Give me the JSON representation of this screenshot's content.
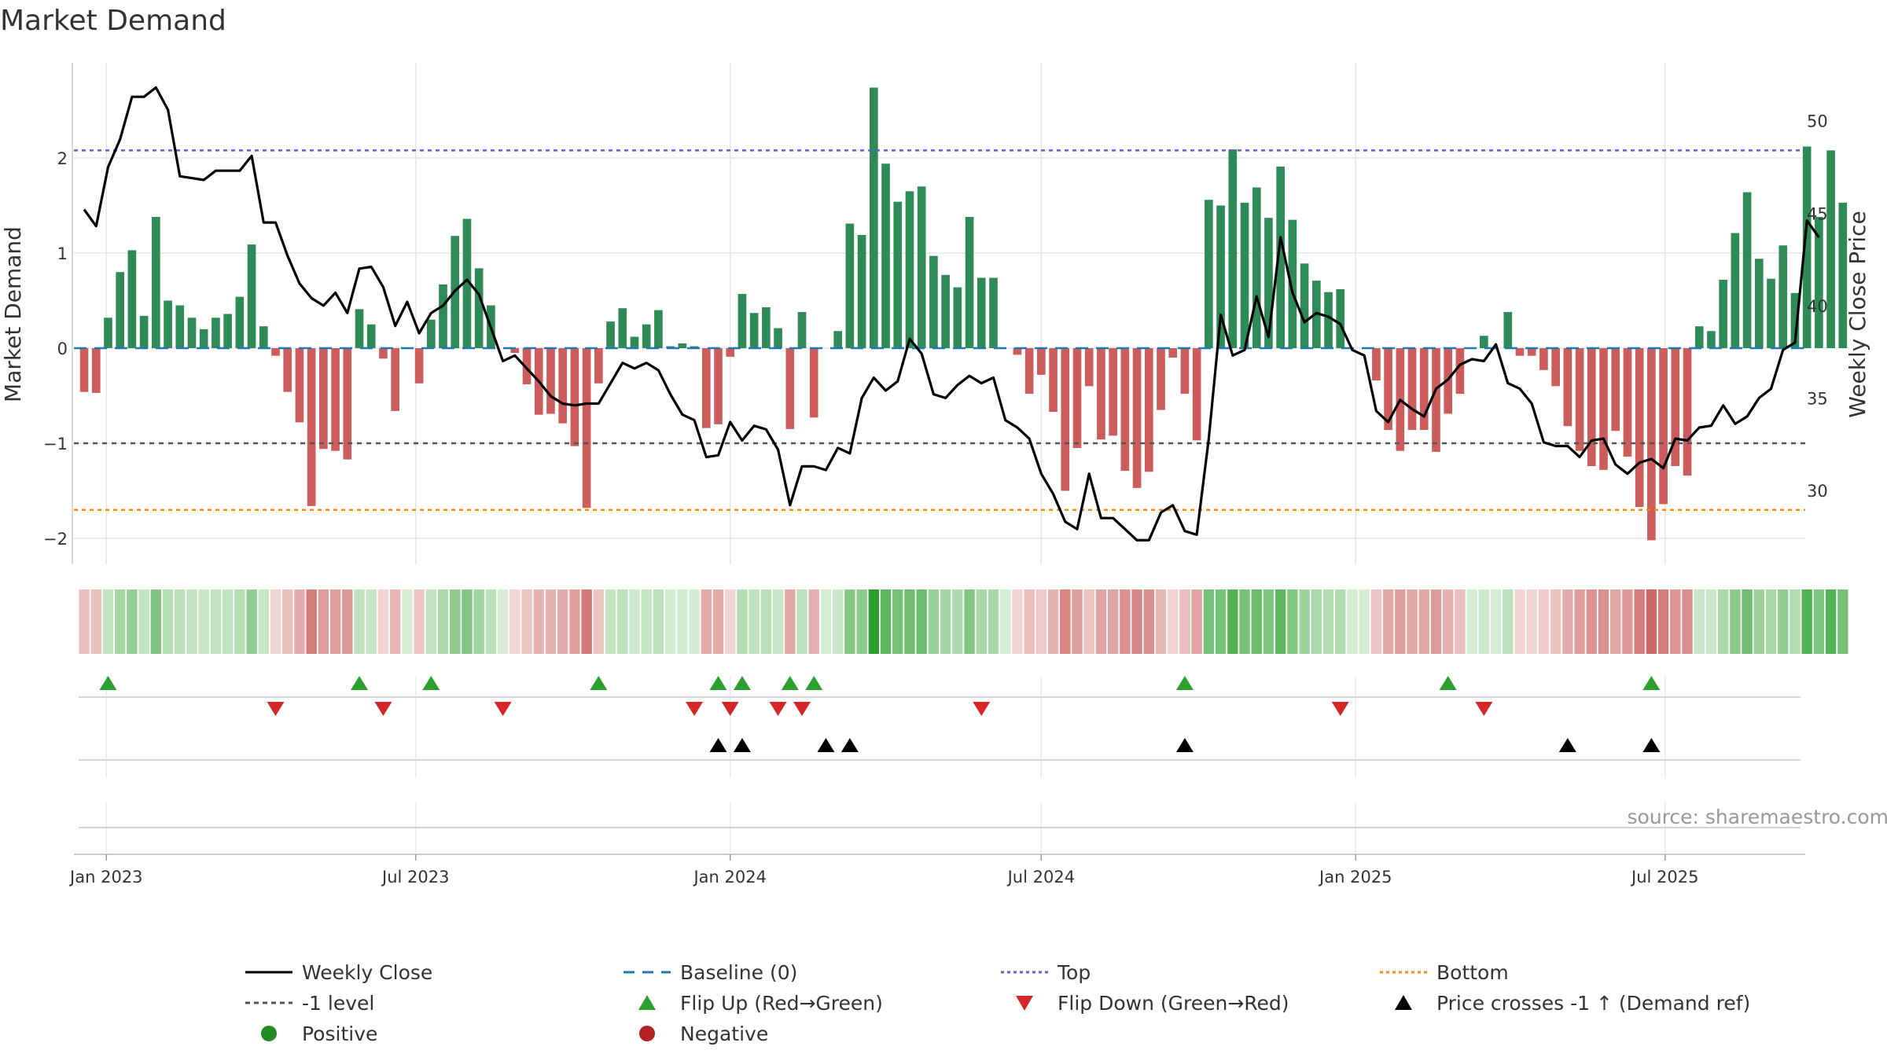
{
  "chart_data": {
    "type": "bar",
    "title": "Market Demand",
    "ylabel": "Market Demand",
    "y2label": "Weekly Close Price",
    "ylim": [
      -2.3,
      2.9
    ],
    "y2lim": [
      26.0,
      54.2
    ],
    "yticks": [
      -2,
      -1,
      0,
      1,
      2
    ],
    "y2ticks": [
      30,
      35,
      40,
      45,
      50
    ],
    "x_start": "2022-12-19",
    "x_step_days": 7,
    "x_domain": [
      "2022-12-13",
      "2025-09-21"
    ],
    "xticks": [
      {
        "date": "2023-01-01",
        "label": "Jan 2023"
      },
      {
        "date": "2023-07-01",
        "label": "Jul 2023"
      },
      {
        "date": "2024-01-01",
        "label": "Jan 2024"
      },
      {
        "date": "2024-07-01",
        "label": "Jul 2024"
      },
      {
        "date": "2025-01-01",
        "label": "Jan 2025"
      },
      {
        "date": "2025-07-01",
        "label": "Jul 2025"
      }
    ],
    "levels": {
      "top": 2.08,
      "minus_one": -1.0,
      "bottom": -1.7,
      "baseline": 0
    },
    "demand": [
      -0.46,
      -0.47,
      0.32,
      0.8,
      1.03,
      0.34,
      1.38,
      0.5,
      0.45,
      0.32,
      0.2,
      0.32,
      0.36,
      0.54,
      1.09,
      0.23,
      -0.08,
      -0.46,
      -0.78,
      -1.66,
      -1.06,
      -1.08,
      -1.17,
      0.41,
      0.25,
      -0.11,
      -0.66,
      0,
      -0.37,
      0.3,
      0.67,
      1.18,
      1.36,
      0.84,
      0.45,
      0,
      -0.05,
      -0.38,
      -0.7,
      -0.69,
      -0.79,
      -1.03,
      -1.68,
      -0.37,
      0.28,
      0.42,
      0.12,
      0.25,
      0.4,
      0.02,
      0.05,
      0.02,
      -0.84,
      -0.8,
      -0.09,
      0.57,
      0.37,
      0.43,
      0.21,
      -0.85,
      0.38,
      -0.73,
      0,
      0.18,
      1.31,
      1.19,
      2.74,
      1.94,
      1.54,
      1.65,
      1.7,
      0.97,
      0.77,
      0.64,
      1.38,
      0.74,
      0.74,
      0,
      -0.07,
      -0.48,
      -0.28,
      -0.67,
      -1.5,
      -1.05,
      -0.4,
      -0.96,
      -0.92,
      -1.29,
      -1.47,
      -1.3,
      -0.65,
      -0.1,
      -0.48,
      -0.97,
      1.56,
      1.5,
      2.09,
      1.53,
      1.69,
      1.37,
      1.91,
      1.35,
      0.89,
      0.71,
      0.59,
      0.62,
      0,
      0,
      -0.34,
      -0.86,
      -1.08,
      -0.86,
      -0.86,
      -1.09,
      -0.69,
      -0.48,
      0,
      0.13,
      0,
      0.38,
      -0.08,
      -0.08,
      -0.23,
      -0.4,
      -0.82,
      -1.08,
      -1.24,
      -1.28,
      -0.87,
      -1.14,
      -1.67,
      -2.02,
      -1.64,
      -1.24,
      -1.34,
      0.23,
      0.18,
      0.72,
      1.21,
      1.64,
      0.94,
      0.73,
      1.08,
      0.58,
      2.12,
      1.38,
      2.08,
      1.53
    ],
    "close": [
      45.2,
      44.3,
      47.5,
      49.0,
      51.3,
      51.3,
      51.8,
      50.6,
      47.0,
      46.9,
      46.8,
      47.3,
      47.3,
      47.3,
      48.1,
      44.5,
      44.5,
      42.7,
      41.2,
      40.4,
      40.0,
      40.7,
      39.6,
      42.0,
      42.1,
      41.0,
      38.9,
      40.2,
      38.5,
      39.6,
      40.0,
      40.8,
      41.4,
      40.6,
      38.8,
      37.0,
      37.3,
      36.6,
      35.9,
      35.1,
      34.7,
      34.6,
      34.7,
      34.7,
      35.8,
      36.9,
      36.6,
      36.9,
      36.5,
      35.2,
      34.1,
      33.8,
      31.8,
      31.9,
      33.7,
      32.7,
      33.5,
      33.3,
      32.2,
      29.2,
      31.3,
      31.3,
      31.1,
      32.3,
      32.0,
      35.0,
      36.1,
      35.4,
      35.9,
      38.2,
      37.4,
      35.2,
      35.0,
      35.7,
      36.2,
      35.8,
      36.1,
      33.8,
      33.4,
      32.8,
      30.9,
      29.8,
      28.3,
      27.9,
      30.9,
      28.5,
      28.5,
      27.9,
      27.3,
      27.3,
      28.8,
      29.2,
      27.8,
      27.6,
      32.8,
      39.5,
      37.3,
      37.6,
      40.5,
      38.3,
      43.7,
      40.7,
      39.1,
      39.6,
      39.4,
      39.0,
      37.6,
      37.3,
      34.3,
      33.7,
      34.9,
      34.4,
      34.0,
      35.5,
      36.0,
      36.8,
      37.1,
      37.0,
      37.9,
      35.8,
      35.5,
      34.7,
      32.6,
      32.4,
      32.4,
      31.8,
      32.7,
      32.8,
      31.4,
      30.9,
      31.5,
      31.7,
      31.2,
      32.8,
      32.7,
      33.4,
      33.5,
      34.6,
      33.6,
      34.0,
      35.0,
      35.5,
      37.6,
      38.0,
      44.6,
      43.7
    ],
    "flip_up_indices": [
      2,
      23,
      29,
      43,
      53,
      55,
      59,
      61,
      92,
      114,
      131
    ],
    "flip_down_indices": [
      16,
      25,
      35,
      51,
      54,
      58,
      60,
      75,
      105,
      117
    ],
    "price_cross_indices": [
      53,
      55,
      62,
      64,
      92,
      124,
      131
    ],
    "heat_strip": "bar colour per week from demand value: green shades for positive, red shades for negative, intensity by magnitude"
  },
  "colors": {
    "green_bar": "#2e8b57",
    "red_bar": "#cd5c5c",
    "close_line": "#000000",
    "baseline": "#1f77b4",
    "top_line": "#6a5acd",
    "bottom_line": "#ff8c00",
    "minus_one_line": "#555555",
    "flip_up": "#2ca02c",
    "flip_down": "#d62728",
    "cross": "#000000",
    "positive_dot": "#228b22",
    "negative_dot": "#b22222",
    "grid": "#e6e6e6"
  },
  "legend": [
    {
      "kind": "line",
      "color": "#000000",
      "dash": "",
      "label": "Weekly Close"
    },
    {
      "kind": "line",
      "color": "#1f77b4",
      "dash": "14,10",
      "label": "Baseline (0)"
    },
    {
      "kind": "line",
      "color": "#6a5acd",
      "dash": "4,4",
      "label": "Top"
    },
    {
      "kind": "line",
      "color": "#ff8c00",
      "dash": "4,4",
      "label": "Bottom"
    },
    {
      "kind": "line",
      "color": "#555555",
      "dash": "6,5",
      "label": "-1 level"
    },
    {
      "kind": "tri-up",
      "color": "#2ca02c",
      "label": "Flip Up (Red→Green)"
    },
    {
      "kind": "tri-down",
      "color": "#d62728",
      "label": "Flip Down (Green→Red)"
    },
    {
      "kind": "tri-up",
      "color": "#000000",
      "label": "Price crosses -1 ↑ (Demand ref)"
    },
    {
      "kind": "dot",
      "color": "#228b22",
      "label": "Positive"
    },
    {
      "kind": "dot",
      "color": "#b22222",
      "label": "Negative"
    }
  ],
  "source": "source: sharemaestro.com"
}
